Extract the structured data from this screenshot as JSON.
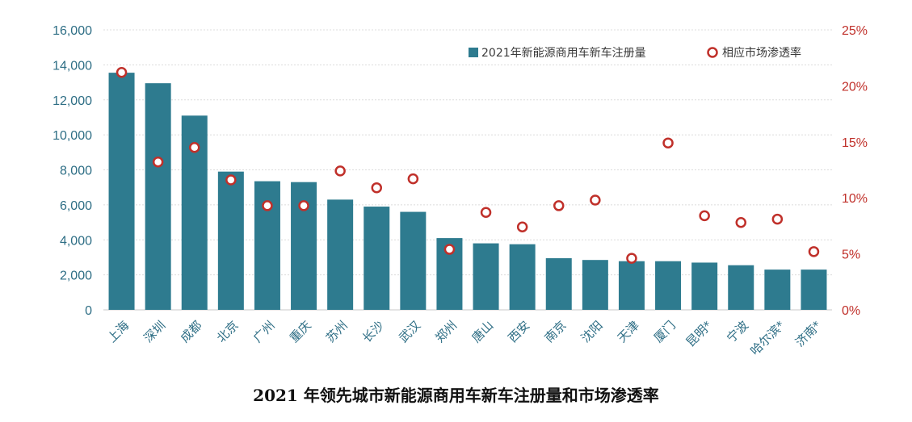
{
  "caption": "2021 年领先城市新能源商用车新车注册量和市场渗透率",
  "colors": {
    "bar": "#2e7b8f",
    "marker": "#c0302a",
    "left_axis": "#2e6e85",
    "right_axis": "#c0302a",
    "grid": "#dcdcdc"
  },
  "chart_data": {
    "type": "bar",
    "categories": [
      "上海",
      "深圳",
      "成都",
      "北京",
      "广州",
      "重庆",
      "苏州",
      "长沙",
      "武汉",
      "郑州",
      "唐山",
      "西安",
      "南京",
      "沈阳",
      "天津",
      "厦门",
      "昆明*",
      "宁波",
      "哈尔滨*",
      "济南*"
    ],
    "series": [
      {
        "name": "2021年新能源商用车新车注册量",
        "type": "bar",
        "axis": "left",
        "values": [
          13550,
          12950,
          11100,
          7900,
          7350,
          7300,
          6300,
          5900,
          5600,
          4100,
          3800,
          3750,
          2950,
          2850,
          2780,
          2780,
          2700,
          2550,
          2300,
          2300
        ]
      },
      {
        "name": "相应市场渗透率",
        "type": "scatter",
        "axis": "right",
        "unit": "%",
        "values": [
          21.2,
          13.2,
          14.5,
          11.6,
          9.3,
          9.3,
          12.4,
          10.9,
          11.7,
          5.4,
          8.7,
          7.4,
          9.3,
          9.8,
          4.6,
          14.9,
          8.4,
          7.8,
          8.1,
          5.2
        ]
      }
    ],
    "left_axis": {
      "ylim": [
        0,
        16000
      ],
      "ticks": [
        "0",
        "2,000",
        "4,000",
        "6,000",
        "8,000",
        "10,000",
        "12,000",
        "14,000",
        "16,000"
      ]
    },
    "right_axis": {
      "ylim": [
        0,
        25
      ],
      "ticks": [
        "0%",
        "5%",
        "10%",
        "15%",
        "20%",
        "25%"
      ]
    },
    "legend_position": "top-right",
    "grid": true
  }
}
